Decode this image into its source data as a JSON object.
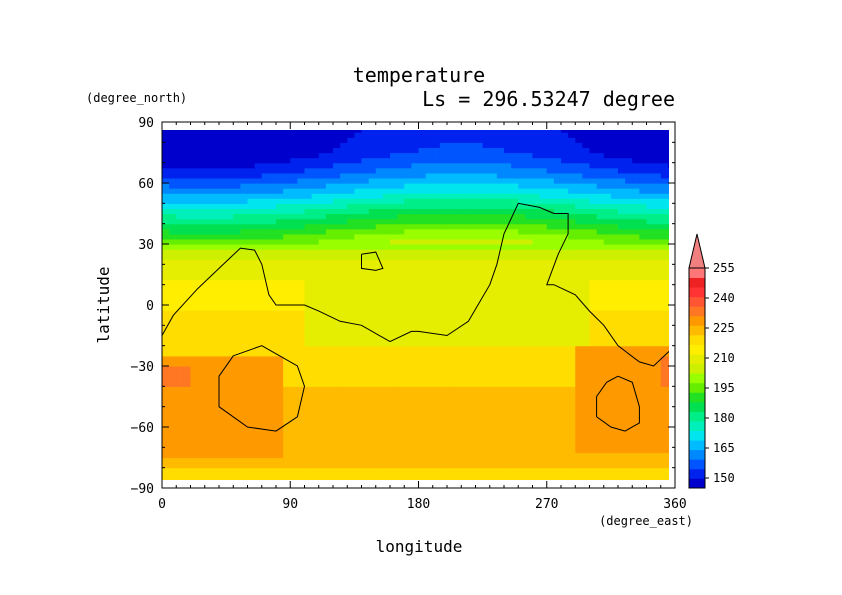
{
  "chart_data": {
    "type": "heatmap",
    "title": "temperature",
    "subtitle": "Ls = 296.53247 degree",
    "xlabel": "longitude",
    "ylabel": "latitude",
    "xunits": "(degree_east)",
    "yunits": "(degree_north)",
    "xlim": [
      0,
      360
    ],
    "ylim": [
      -90,
      90
    ],
    "xticks": [
      "0",
      "90",
      "180",
      "270",
      "360"
    ],
    "yticks": [
      "90",
      "60",
      "30",
      "0",
      "−30",
      "−60",
      "−90"
    ],
    "xtick_values": [
      0,
      90,
      180,
      270,
      360
    ],
    "ytick_values": [
      90,
      60,
      30,
      0,
      -30,
      -60,
      -90
    ],
    "colorbar": {
      "levels": [
        145,
        150,
        155,
        160,
        165,
        170,
        175,
        180,
        185,
        190,
        195,
        200,
        205,
        210,
        215,
        220,
        225,
        230,
        235,
        240,
        245,
        250,
        255,
        260
      ],
      "labels": [
        "150",
        "165",
        "180",
        "195",
        "210",
        "225",
        "240",
        "255"
      ],
      "label_values": [
        150,
        165,
        180,
        195,
        210,
        225,
        240,
        255
      ],
      "colors": [
        "#0000cc",
        "#0022ee",
        "#0055ff",
        "#0088ff",
        "#00bbff",
        "#00e5ee",
        "#00f0bb",
        "#00ee88",
        "#00e050",
        "#22e022",
        "#66ee00",
        "#99ff00",
        "#ccf000",
        "#e5ee00",
        "#ffee00",
        "#ffdd00",
        "#ffbb00",
        "#ff9900",
        "#ff7722",
        "#ff5533",
        "#ff3333",
        "#ee2222",
        "#ff7777"
      ],
      "extend_max_color": "#f08080"
    },
    "temperature_profile": {
      "latitudes": [
        -85,
        -75,
        -60,
        -45,
        -35,
        -25,
        -15,
        -5,
        5,
        15,
        25,
        35,
        45,
        55,
        65,
        75,
        85
      ],
      "values": [
        224,
        226,
        227,
        226,
        224,
        223,
        222,
        221,
        218,
        214,
        208,
        197,
        184,
        170,
        158,
        150,
        148
      ]
    },
    "warm_regions": [
      {
        "lon_range": [
          0,
          85
        ],
        "lat_range": [
          -75,
          -25
        ],
        "value": 232
      },
      {
        "lon_range": [
          290,
          360
        ],
        "lat_range": [
          -72,
          -20
        ],
        "value": 232
      },
      {
        "lon_range": [
          0,
          20
        ],
        "lat_range": [
          -40,
          -30
        ],
        "value": 238
      },
      {
        "lon_range": [
          350,
          360
        ],
        "lat_range": [
          -40,
          -25
        ],
        "value": 238
      }
    ],
    "cool_regions": [
      {
        "lon_range": [
          100,
          300
        ],
        "lat_range": [
          -20,
          20
        ],
        "value": 212
      }
    ],
    "contours": [
      {
        "lon": [
          0,
          8,
          25,
          40,
          55,
          65,
          70,
          75,
          80,
          90,
          100,
          110,
          125,
          140,
          160,
          175,
          180,
          200,
          215,
          230,
          235,
          240,
          250,
          265,
          275,
          285,
          285,
          278,
          270,
          275,
          290,
          300,
          310,
          320,
          335,
          345,
          360
        ],
        "lat": [
          -15,
          -5,
          8,
          18,
          28,
          27,
          20,
          5,
          0,
          0,
          0,
          -3,
          -8,
          -10,
          -18,
          -13,
          -13,
          -15,
          -8,
          10,
          20,
          35,
          50,
          48,
          45,
          45,
          35,
          25,
          10,
          10,
          5,
          -3,
          -10,
          -20,
          -28,
          -30,
          -20
        ]
      },
      {
        "lon": [
          50,
          70,
          95,
          100,
          95,
          80,
          60,
          40,
          40,
          50
        ],
        "lat": [
          -25,
          -20,
          -30,
          -40,
          -55,
          -62,
          -60,
          -50,
          -35,
          -25
        ]
      },
      {
        "lon": [
          320,
          330,
          335,
          335,
          325,
          315,
          305,
          305,
          312,
          320
        ],
        "lat": [
          -35,
          -38,
          -50,
          -58,
          -62,
          -60,
          -55,
          -45,
          -38,
          -35
        ]
      },
      {
        "lon": [
          140,
          150,
          155,
          150,
          140,
          140
        ],
        "lat": [
          25,
          26,
          18,
          17,
          18,
          25
        ]
      }
    ]
  }
}
